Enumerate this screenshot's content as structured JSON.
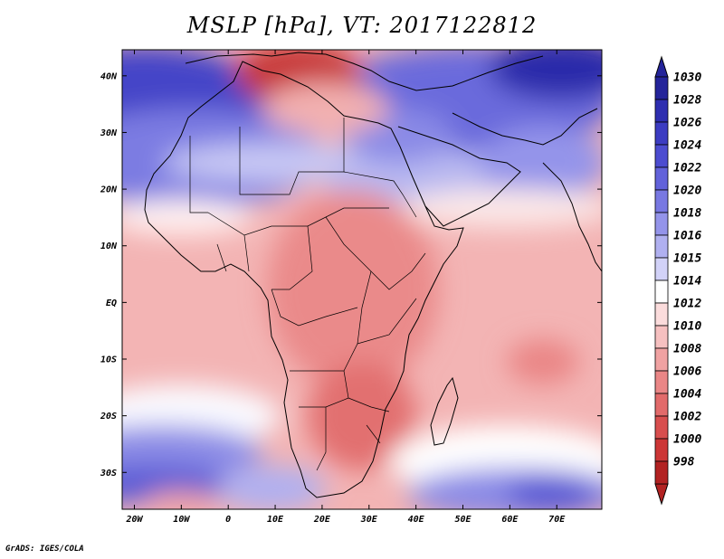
{
  "title": "MSLP [hPa], VT: 2017122812",
  "credit": "GrADS: IGES/COLA",
  "map": {
    "lat_ticks": [
      "40N",
      "30N",
      "20N",
      "10N",
      "EQ",
      "10S",
      "20S",
      "30S"
    ],
    "lon_ticks": [
      "20W",
      "10W",
      "0",
      "10E",
      "20E",
      "30E",
      "40E",
      "50E",
      "60E",
      "70E"
    ]
  },
  "colorbar": {
    "levels": [
      "1030",
      "1028",
      "1026",
      "1024",
      "1022",
      "1020",
      "1018",
      "1016",
      "1015",
      "1014",
      "1012",
      "1010",
      "1008",
      "1006",
      "1004",
      "1002",
      "1000",
      "998"
    ],
    "colors": [
      "#24249a",
      "#2e2eb0",
      "#3c3cc2",
      "#4c4cd0",
      "#6262da",
      "#7878e2",
      "#9494ea",
      "#b0b0f0",
      "#d2d2f8",
      "#ffffff",
      "#fbdcdc",
      "#f6c0c0",
      "#f0a2a2",
      "#ea8686",
      "#e26a6a",
      "#d84e4e",
      "#cc3636",
      "#b22222"
    ]
  }
}
